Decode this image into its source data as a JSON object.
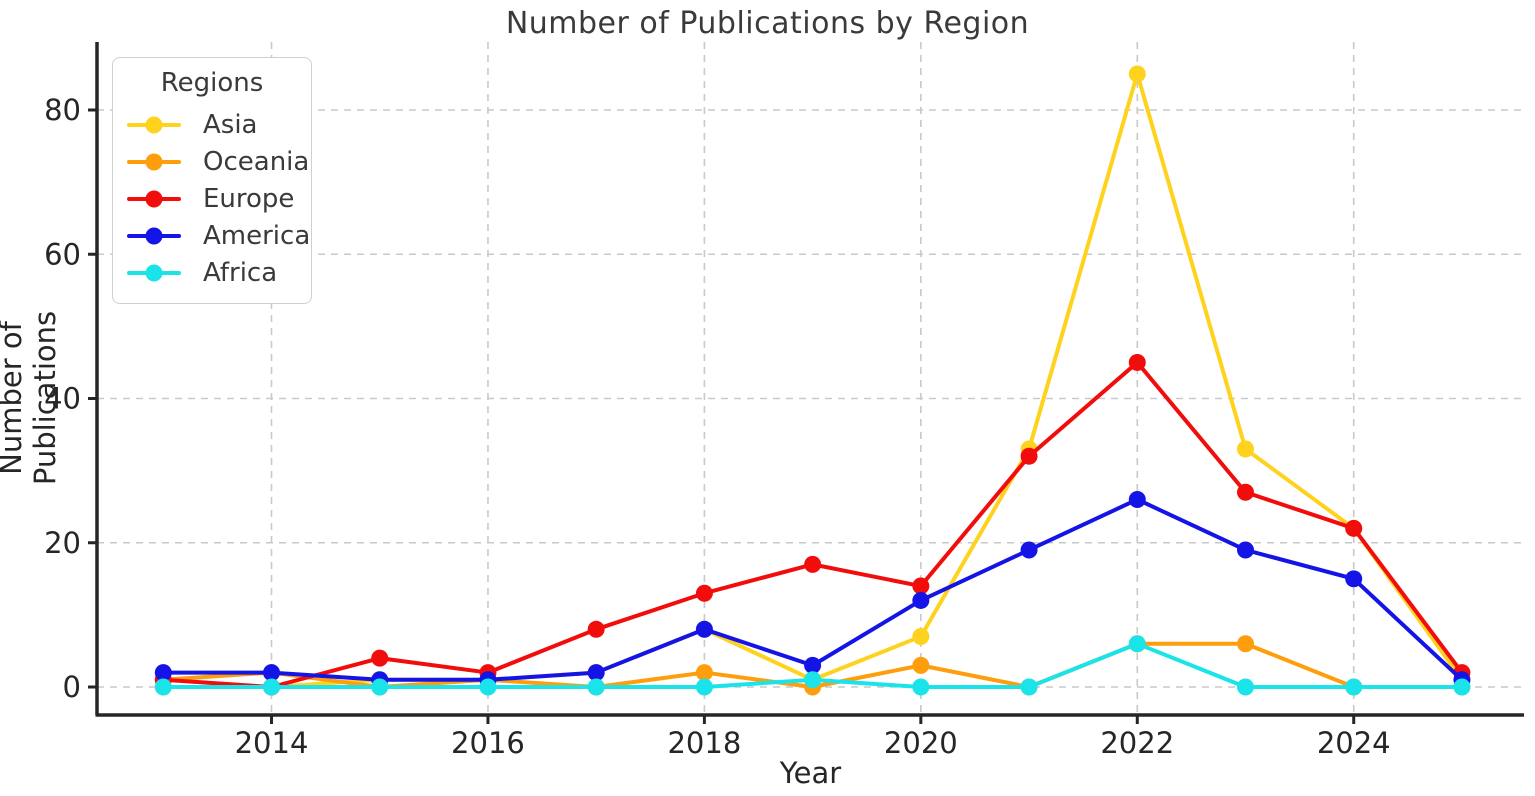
{
  "chart_data": {
    "type": "line",
    "title": "Number of Publications by Region",
    "xlabel": "Year",
    "ylabel": "Number of Publications",
    "x": [
      2013,
      2014,
      2015,
      2016,
      2017,
      2018,
      2019,
      2020,
      2021,
      2022,
      2023,
      2024,
      2025
    ],
    "x_ticks": [
      2014,
      2016,
      2018,
      2020,
      2022,
      2024
    ],
    "y_ticks": [
      0,
      20,
      40,
      60,
      80
    ],
    "xlim": [
      2012.4,
      2025.6
    ],
    "ylim": [
      -4,
      89
    ],
    "grid": true,
    "grid_style": "dashed",
    "legend": {
      "title": "Regions",
      "position": "upper left"
    },
    "series": [
      {
        "name": "Asia",
        "color": "#FFD21E",
        "values": [
          0,
          0,
          1,
          1,
          2,
          8,
          1,
          7,
          33,
          85,
          33,
          22,
          1
        ]
      },
      {
        "name": "Oceania",
        "color": "#FF9E0D",
        "values": [
          1,
          2,
          0,
          1,
          0,
          2,
          0,
          3,
          0,
          6,
          6,
          0,
          0
        ]
      },
      {
        "name": "Europe",
        "color": "#F20D0D",
        "values": [
          1,
          0,
          4,
          2,
          8,
          13,
          17,
          14,
          32,
          45,
          27,
          22,
          2
        ]
      },
      {
        "name": "America",
        "color": "#1414E6",
        "values": [
          2,
          2,
          1,
          1,
          2,
          8,
          3,
          12,
          19,
          26,
          19,
          15,
          1
        ]
      },
      {
        "name": "Africa",
        "color": "#1AE4EA",
        "values": [
          0,
          0,
          0,
          0,
          0,
          0,
          1,
          0,
          0,
          6,
          0,
          0,
          0
        ]
      }
    ],
    "colors": {
      "axis": "#262626",
      "grid": "#c9c9c9",
      "text": "#3a3a3a"
    }
  }
}
